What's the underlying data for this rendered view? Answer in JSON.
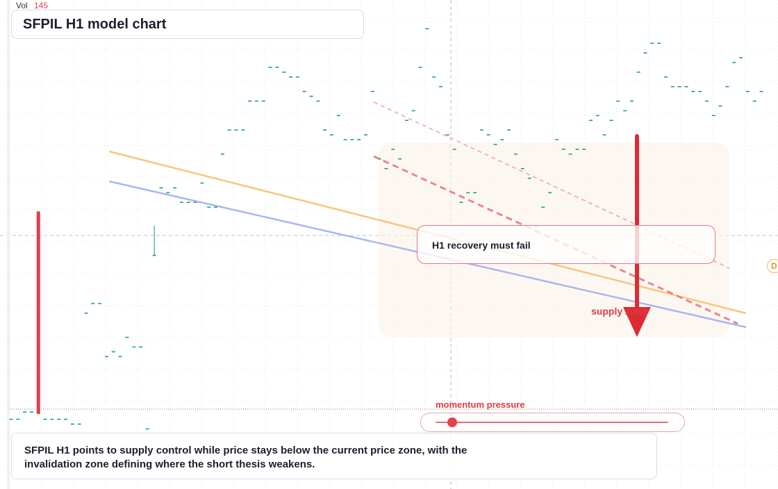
{
  "header": {
    "vol_label": "Vol",
    "vol_value": "145",
    "title": "SFPIL H1 model chart"
  },
  "callout": {
    "text": "H1 recovery must fail"
  },
  "zone_label": "supply zone",
  "momentum": {
    "label": "momentum pressure",
    "level": 0.07
  },
  "summary": {
    "text": "SFPIL H1 points to supply control while price stays below the current price zone, with the invalidation zone defining where the short thesis weakens."
  },
  "edge_badge": "D",
  "colors": {
    "up": "#12977c",
    "down": "#e33d4b",
    "orange_line": "#f6c070",
    "blue_line": "#a0b0ee",
    "arrow": "#dd2b33",
    "dashed": "#e57c82"
  },
  "chart_data": {
    "type": "candlestick",
    "title": "SFPIL H1 model chart",
    "ylim": [
      0,
      100
    ],
    "grid": true,
    "candles": [
      {
        "o": 14,
        "h": 14,
        "l": 14,
        "c": 14
      },
      {
        "o": 14,
        "h": 14,
        "l": 14,
        "c": 14
      },
      {
        "o": 15.5,
        "h": 15.5,
        "l": 15.5,
        "c": 15.5
      },
      {
        "o": 15.5,
        "h": 15.5,
        "l": 15.5,
        "c": 15.5
      },
      {
        "o": 57,
        "h": 57,
        "l": 15,
        "c": 15
      },
      {
        "o": 14,
        "h": 14,
        "l": 14,
        "c": 14
      },
      {
        "o": 14,
        "h": 14,
        "l": 14,
        "c": 14
      },
      {
        "o": 14,
        "h": 14,
        "l": 14,
        "c": 14
      },
      {
        "o": 14,
        "h": 14,
        "l": 14,
        "c": 14
      },
      {
        "o": 13,
        "h": 13,
        "l": 13,
        "c": 13
      },
      {
        "o": 13,
        "h": 13,
        "l": 13,
        "c": 13
      },
      {
        "o": 36,
        "h": 36,
        "l": 36,
        "c": 36
      },
      {
        "o": 38,
        "h": 38,
        "l": 38,
        "c": 38
      },
      {
        "o": 38,
        "h": 38,
        "l": 38,
        "c": 38
      },
      {
        "o": 27,
        "h": 27,
        "l": 27,
        "c": 27
      },
      {
        "o": 28,
        "h": 28,
        "l": 28,
        "c": 28
      },
      {
        "o": 27,
        "h": 27,
        "l": 27,
        "c": 27
      },
      {
        "o": 31,
        "h": 31,
        "l": 31,
        "c": 31
      },
      {
        "o": 29,
        "h": 29,
        "l": 29,
        "c": 29
      },
      {
        "o": 29,
        "h": 29,
        "l": 29,
        "c": 29
      },
      {
        "o": 12,
        "h": 12,
        "l": 12,
        "c": 12
      },
      {
        "o": 48,
        "h": 54,
        "l": 48,
        "c": 48
      },
      {
        "o": 62,
        "h": 62,
        "l": 62,
        "c": 62
      },
      {
        "o": 61,
        "h": 61,
        "l": 61,
        "c": 61
      },
      {
        "o": 62,
        "h": 62,
        "l": 62,
        "c": 62
      },
      {
        "o": 59,
        "h": 59,
        "l": 59,
        "c": 59
      },
      {
        "o": 59,
        "h": 59,
        "l": 59,
        "c": 59
      },
      {
        "o": 59,
        "h": 59,
        "l": 59,
        "c": 59
      },
      {
        "o": 63,
        "h": 63,
        "l": 63,
        "c": 63
      },
      {
        "o": 58,
        "h": 58,
        "l": 58,
        "c": 58
      },
      {
        "o": 58,
        "h": 58,
        "l": 58,
        "c": 58
      },
      {
        "o": 69,
        "h": 69,
        "l": 69,
        "c": 69
      },
      {
        "o": 74,
        "h": 74,
        "l": 74,
        "c": 74
      },
      {
        "o": 74,
        "h": 74,
        "l": 74,
        "c": 74
      },
      {
        "o": 74,
        "h": 74,
        "l": 74,
        "c": 74
      },
      {
        "o": 80,
        "h": 80,
        "l": 80,
        "c": 80
      },
      {
        "o": 80,
        "h": 80,
        "l": 80,
        "c": 80
      },
      {
        "o": 80,
        "h": 80,
        "l": 80,
        "c": 80
      },
      {
        "o": 87,
        "h": 87,
        "l": 87,
        "c": 87
      },
      {
        "o": 87,
        "h": 87,
        "l": 87,
        "c": 87
      },
      {
        "o": 86,
        "h": 86,
        "l": 86,
        "c": 86
      },
      {
        "o": 85,
        "h": 85,
        "l": 85,
        "c": 85
      },
      {
        "o": 85,
        "h": 85,
        "l": 85,
        "c": 85
      },
      {
        "o": 82,
        "h": 82,
        "l": 82,
        "c": 82
      },
      {
        "o": 81,
        "h": 81,
        "l": 81,
        "c": 81
      },
      {
        "o": 80,
        "h": 80,
        "l": 80,
        "c": 80
      },
      {
        "o": 74,
        "h": 74,
        "l": 74,
        "c": 74
      },
      {
        "o": 73,
        "h": 73,
        "l": 73,
        "c": 73
      },
      {
        "o": 77,
        "h": 77,
        "l": 77,
        "c": 77
      },
      {
        "o": 72,
        "h": 72,
        "l": 72,
        "c": 72
      },
      {
        "o": 72,
        "h": 72,
        "l": 72,
        "c": 72
      },
      {
        "o": 72,
        "h": 72,
        "l": 72,
        "c": 72
      },
      {
        "o": 73,
        "h": 73,
        "l": 73,
        "c": 73
      },
      {
        "o": 82,
        "h": 82,
        "l": 82,
        "c": 82
      },
      {
        "o": 68,
        "h": 68,
        "l": 68,
        "c": 68
      },
      {
        "o": 66,
        "h": 66,
        "l": 66,
        "c": 66
      },
      {
        "o": 70,
        "h": 70,
        "l": 70,
        "c": 70
      },
      {
        "o": 68,
        "h": 68,
        "l": 68,
        "c": 68
      },
      {
        "o": 76,
        "h": 76,
        "l": 76,
        "c": 76
      },
      {
        "o": 78,
        "h": 78,
        "l": 78,
        "c": 78
      },
      {
        "o": 87,
        "h": 87,
        "l": 87,
        "c": 87
      },
      {
        "o": 95,
        "h": 95,
        "l": 95,
        "c": 95
      },
      {
        "o": 85,
        "h": 85,
        "l": 85,
        "c": 85
      },
      {
        "o": 83,
        "h": 83,
        "l": 83,
        "c": 83
      },
      {
        "o": 73,
        "h": 73,
        "l": 73,
        "c": 73
      },
      {
        "o": 70,
        "h": 70,
        "l": 70,
        "c": 70
      },
      {
        "o": 59,
        "h": 59,
        "l": 59,
        "c": 59
      },
      {
        "o": 61,
        "h": 61,
        "l": 61,
        "c": 61
      },
      {
        "o": 61,
        "h": 61,
        "l": 61,
        "c": 61
      },
      {
        "o": 74,
        "h": 74,
        "l": 74,
        "c": 74
      },
      {
        "o": 73,
        "h": 73,
        "l": 73,
        "c": 73
      },
      {
        "o": 71,
        "h": 71,
        "l": 71,
        "c": 71
      },
      {
        "o": 72,
        "h": 72,
        "l": 72,
        "c": 72
      },
      {
        "o": 74,
        "h": 74,
        "l": 74,
        "c": 74
      },
      {
        "o": 69,
        "h": 69,
        "l": 69,
        "c": 69
      },
      {
        "o": 66,
        "h": 66,
        "l": 66,
        "c": 66
      },
      {
        "o": 64,
        "h": 64,
        "l": 64,
        "c": 64
      },
      {
        "o": 54,
        "h": 54,
        "l": 54,
        "c": 54
      },
      {
        "o": 58,
        "h": 58,
        "l": 58,
        "c": 58
      },
      {
        "o": 61,
        "h": 61,
        "l": 61,
        "c": 61
      },
      {
        "o": 72,
        "h": 72,
        "l": 72,
        "c": 72
      },
      {
        "o": 70,
        "h": 70,
        "l": 70,
        "c": 70
      },
      {
        "o": 69,
        "h": 69,
        "l": 69,
        "c": 69
      },
      {
        "o": 70,
        "h": 70,
        "l": 70,
        "c": 70
      },
      {
        "o": 70,
        "h": 70,
        "l": 70,
        "c": 70
      },
      {
        "o": 76,
        "h": 76,
        "l": 76,
        "c": 76
      },
      {
        "o": 77,
        "h": 77,
        "l": 77,
        "c": 77
      },
      {
        "o": 73,
        "h": 73,
        "l": 73,
        "c": 73
      },
      {
        "o": 76,
        "h": 76,
        "l": 76,
        "c": 76
      },
      {
        "o": 80,
        "h": 80,
        "l": 80,
        "c": 80
      },
      {
        "o": 78,
        "h": 78,
        "l": 78,
        "c": 78
      },
      {
        "o": 80,
        "h": 80,
        "l": 80,
        "c": 80
      },
      {
        "o": 86,
        "h": 86,
        "l": 86,
        "c": 86
      },
      {
        "o": 90,
        "h": 90,
        "l": 90,
        "c": 90
      },
      {
        "o": 92,
        "h": 92,
        "l": 92,
        "c": 92
      },
      {
        "o": 92,
        "h": 92,
        "l": 92,
        "c": 92
      },
      {
        "o": 85,
        "h": 85,
        "l": 85,
        "c": 85
      },
      {
        "o": 83,
        "h": 83,
        "l": 83,
        "c": 83
      },
      {
        "o": 83,
        "h": 83,
        "l": 83,
        "c": 83
      },
      {
        "o": 83,
        "h": 83,
        "l": 83,
        "c": 83
      },
      {
        "o": 82,
        "h": 82,
        "l": 82,
        "c": 82
      },
      {
        "o": 82,
        "h": 82,
        "l": 82,
        "c": 82
      },
      {
        "o": 80,
        "h": 80,
        "l": 80,
        "c": 80
      },
      {
        "o": 77,
        "h": 77,
        "l": 77,
        "c": 77
      },
      {
        "o": 79,
        "h": 79,
        "l": 79,
        "c": 79
      },
      {
        "o": 83,
        "h": 83,
        "l": 83,
        "c": 83
      },
      {
        "o": 88,
        "h": 88,
        "l": 88,
        "c": 88
      },
      {
        "o": 89,
        "h": 89,
        "l": 89,
        "c": 89
      },
      {
        "o": 82,
        "h": 82,
        "l": 82,
        "c": 82
      },
      {
        "o": 80,
        "h": 80,
        "l": 80,
        "c": 80
      },
      {
        "o": 82,
        "h": 82,
        "l": 82,
        "c": 82
      }
    ]
  }
}
